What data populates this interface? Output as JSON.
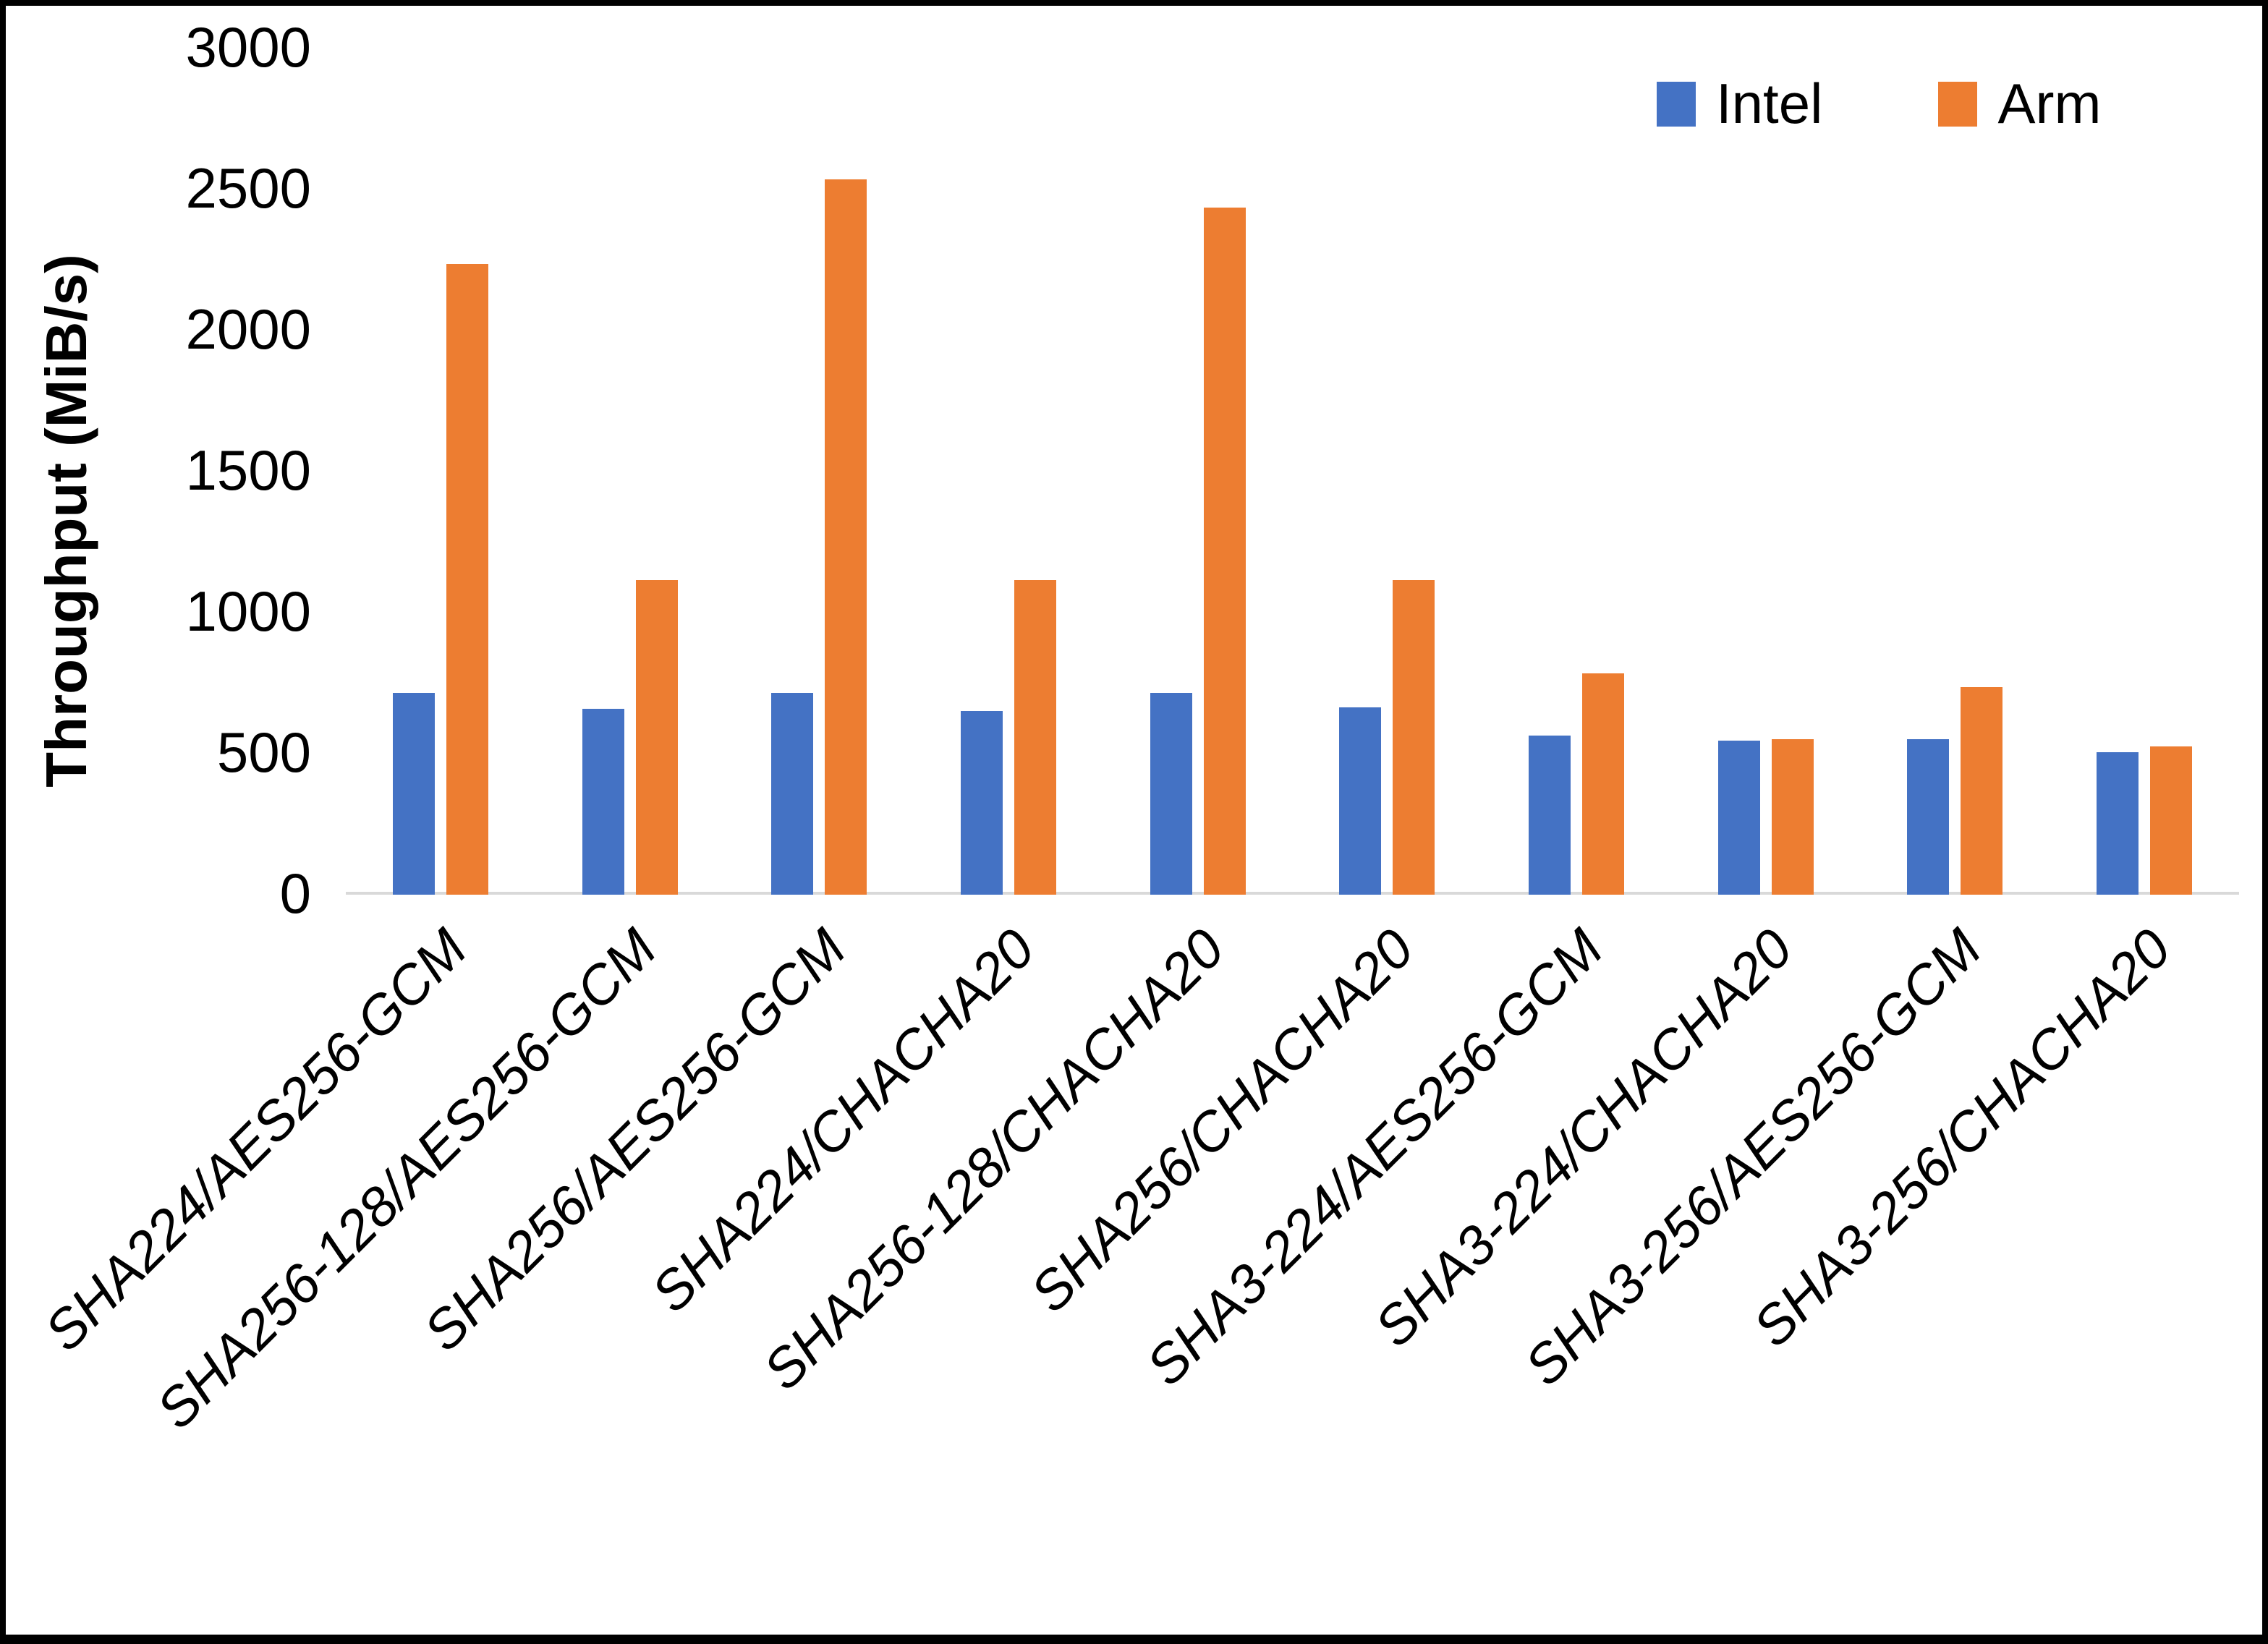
{
  "chart_data": {
    "type": "bar",
    "title": "",
    "xlabel": "",
    "ylabel": "Throughput (MiB/s)",
    "ylim": [
      0,
      3000
    ],
    "yticks": [
      0,
      500,
      1000,
      1500,
      2000,
      2500,
      3000
    ],
    "grid": false,
    "legend_position": "top-right-inside",
    "categories": [
      "SHA224/AES256-GCM",
      "SHA256-128/AES256-GCM",
      "SHA256/AES256-GCM",
      "SHA224/CHACHA20",
      "SHA256-128/CHACHA20",
      "SHA256/CHACHA20",
      "SHA3-224/AES256-GCM",
      "SHA3-224/CHACHA20",
      "SHA3-256/AES256-GCM",
      "SHA3-256/CHACHA20"
    ],
    "series": [
      {
        "name": "Intel",
        "color": "#4472C4",
        "values": [
          710,
          655,
          710,
          645,
          710,
          660,
          560,
          540,
          545,
          500
        ]
      },
      {
        "name": "Arm",
        "color": "#ED7D31",
        "values": [
          2230,
          1110,
          2530,
          1110,
          2430,
          1110,
          780,
          545,
          730,
          520
        ]
      }
    ]
  },
  "colors": {
    "background": "#FFFFFF",
    "frame_border": "#000000",
    "axis_line": "#D9D9D9",
    "text": "#000000"
  }
}
